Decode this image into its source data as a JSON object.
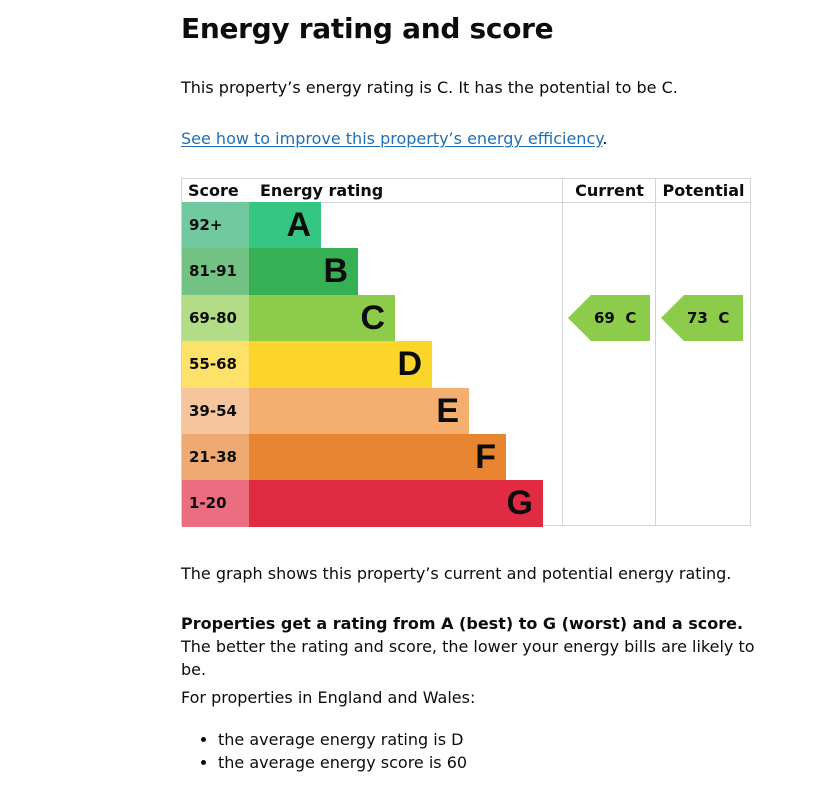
{
  "page": {
    "title": "Energy rating and score",
    "intro": "This property’s energy rating is C. It has the potential to be C.",
    "improve_link": "See how to improve this property’s energy efficiency",
    "improve_link_suffix": "."
  },
  "epc_table": {
    "headers": {
      "score": "Score",
      "rating": "Energy rating",
      "current": "Current",
      "potential": "Potential"
    },
    "bands": [
      {
        "score": "92+",
        "letter": "A",
        "bar_color": "#35c681",
        "score_bg": "#71c9a0"
      },
      {
        "score": "81-91",
        "letter": "B",
        "bar_color": "#35b055",
        "score_bg": "#71c283"
      },
      {
        "score": "69-80",
        "letter": "C",
        "bar_color": "#8dcc4b",
        "score_bg": "#b3dc86"
      },
      {
        "score": "55-68",
        "letter": "D",
        "bar_color": "#fcd52a",
        "score_bg": "#fde168"
      },
      {
        "score": "39-54",
        "letter": "E",
        "bar_color": "#f4ae70",
        "score_bg": "#f7c59b"
      },
      {
        "score": "21-38",
        "letter": "F",
        "bar_color": "#e78531",
        "score_bg": "#eeaa72"
      },
      {
        "score": "1-20",
        "letter": "G",
        "bar_color": "#e12b42",
        "score_bg": "#ea6d80"
      }
    ],
    "current": {
      "label": "69  C",
      "score": 69,
      "band": "C",
      "color": "#8dcc4b"
    },
    "potential": {
      "label": "73  C",
      "score": 73,
      "band": "C",
      "color": "#8dcc4b"
    }
  },
  "text": {
    "graph_note": "The graph shows this property’s current and potential energy rating.",
    "rating_bold": "Properties get a rating from A (best) to G (worst) and a score.",
    "rating_rest": " The better the rating and score, the lower your energy bills are likely to be.",
    "england_wales": "For properties in England and Wales:",
    "bullets": [
      "the average energy rating is D",
      "the average energy score is 60"
    ]
  }
}
